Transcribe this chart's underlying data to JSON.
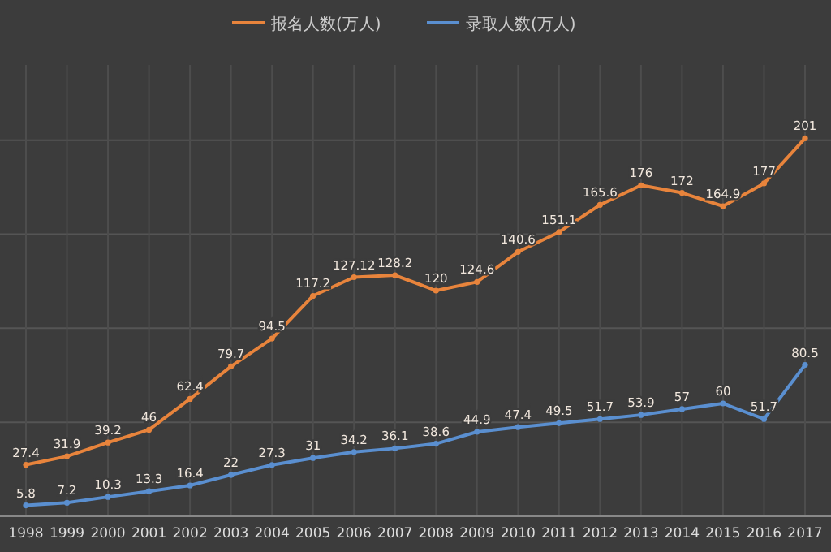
{
  "chart_data": {
    "type": "line",
    "categories": [
      "1998",
      "1999",
      "2000",
      "2001",
      "2002",
      "2003",
      "2004",
      "2005",
      "2006",
      "2007",
      "2008",
      "2009",
      "2010",
      "2011",
      "2012",
      "2013",
      "2014",
      "2015",
      "2016",
      "2017"
    ],
    "series": [
      {
        "name": "报名人数(万人)",
        "color": "#e8843c",
        "values": [
          27.4,
          31.9,
          39.2,
          46,
          62.4,
          79.7,
          94.5,
          117.2,
          127.12,
          128.2,
          120,
          124.6,
          140.6,
          151.1,
          165.6,
          176,
          172,
          164.9,
          177,
          201
        ]
      },
      {
        "name": "录取人数(万人)",
        "color": "#5a8fd0",
        "values": [
          5.8,
          7.2,
          10.3,
          13.3,
          16.4,
          22,
          27.3,
          31,
          34.2,
          36.1,
          38.6,
          44.9,
          47.4,
          49.5,
          51.7,
          53.9,
          57,
          60,
          51.7,
          80.5
        ]
      }
    ],
    "ylim": [
      0,
      240
    ],
    "yticks": [
      {
        "value": 0,
        "label": null
      },
      {
        "value": 50,
        "label": null
      },
      {
        "value": 100,
        "label": null
      },
      {
        "value": 150,
        "label": null
      },
      {
        "value": 200,
        "label": null
      }
    ],
    "tick_labels": "x",
    "grid": true,
    "data_labels": true,
    "legend": "top",
    "marker": "circle"
  }
}
